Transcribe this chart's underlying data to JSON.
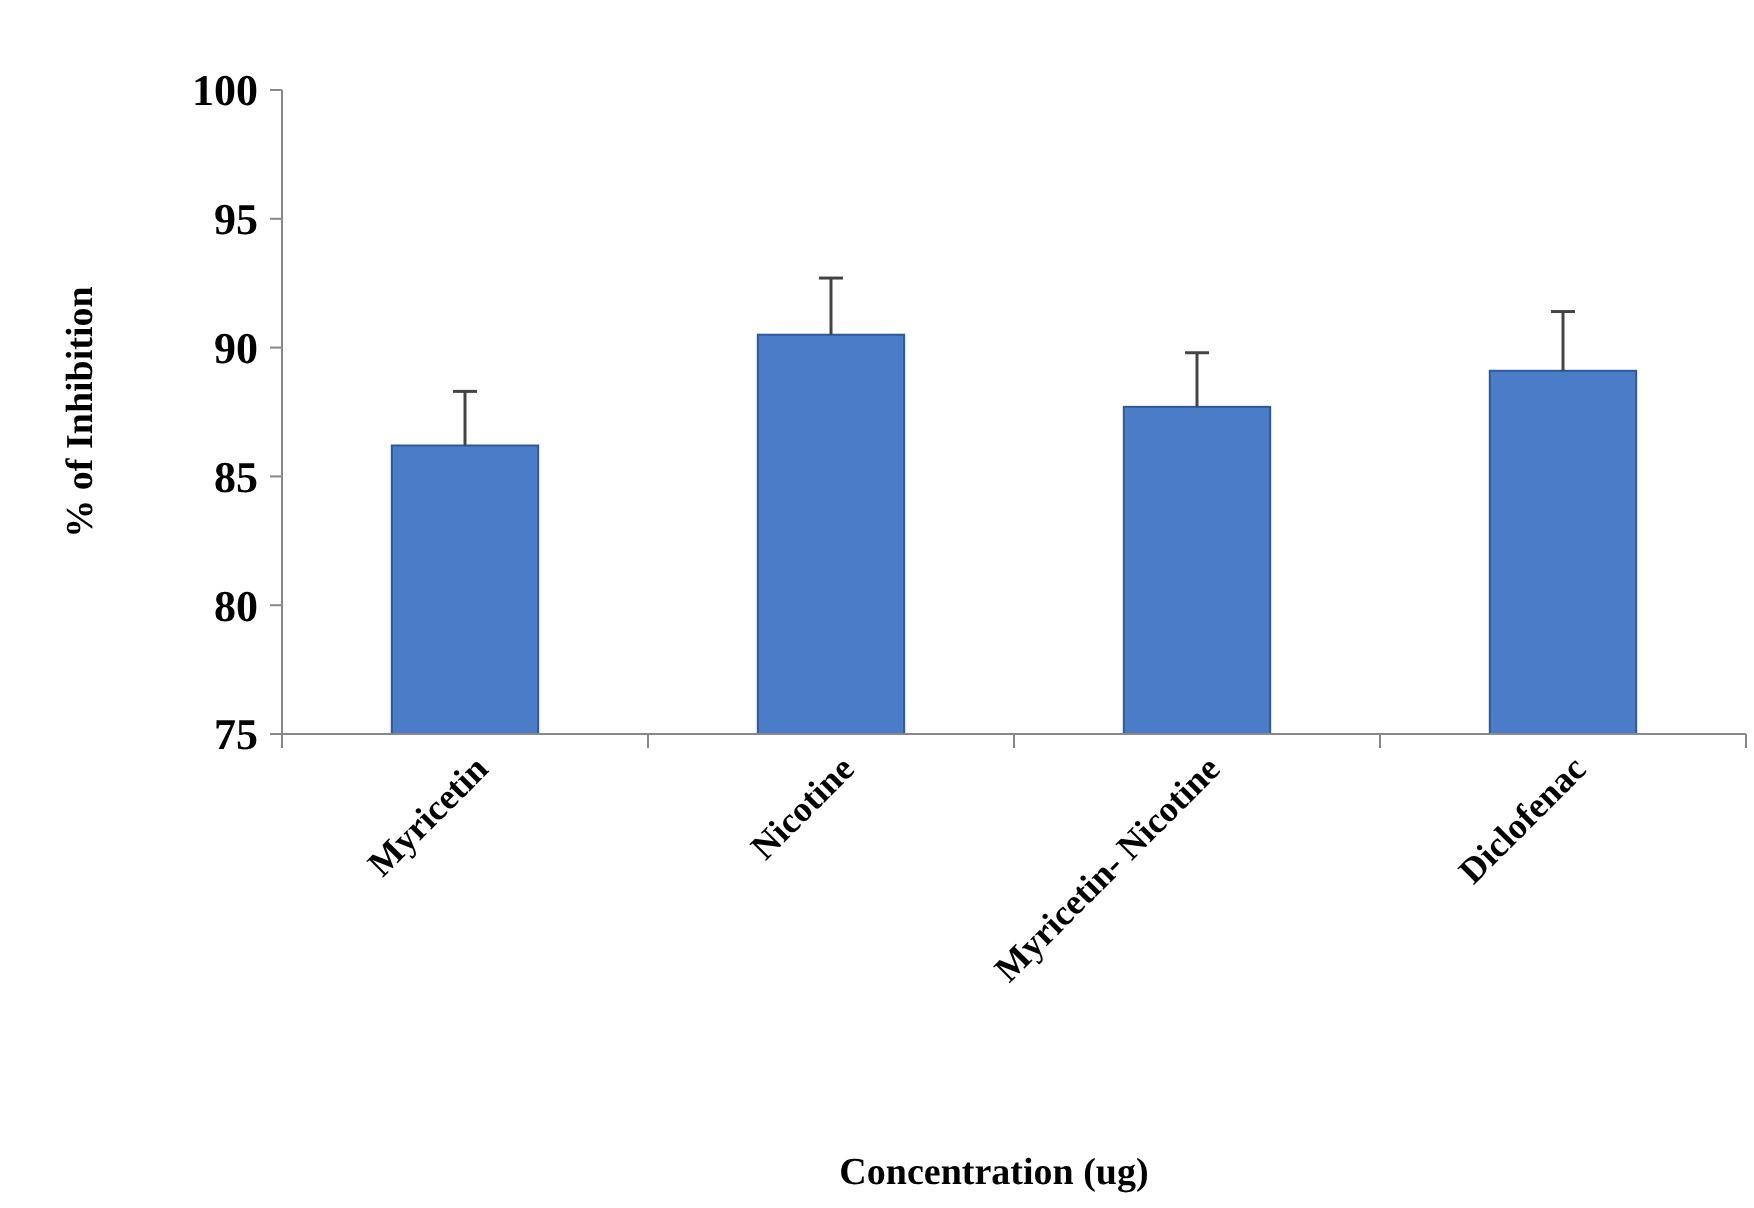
{
  "chart_data": {
    "type": "bar",
    "xlabel": "Concentration (ug)",
    "ylabel": "% of Inhibition",
    "categories": [
      "Myricetin",
      "Nicotine",
      "Myricetin- Nicotine",
      "Diclofenac"
    ],
    "values": [
      86.2,
      90.5,
      87.7,
      89.1
    ],
    "errors": [
      2.1,
      2.2,
      2.1,
      2.3
    ],
    "color": "#4a7cc8",
    "ylim": [
      75,
      100
    ],
    "yticks": [
      75,
      80,
      85,
      90,
      95,
      100
    ],
    "grid": false
  }
}
